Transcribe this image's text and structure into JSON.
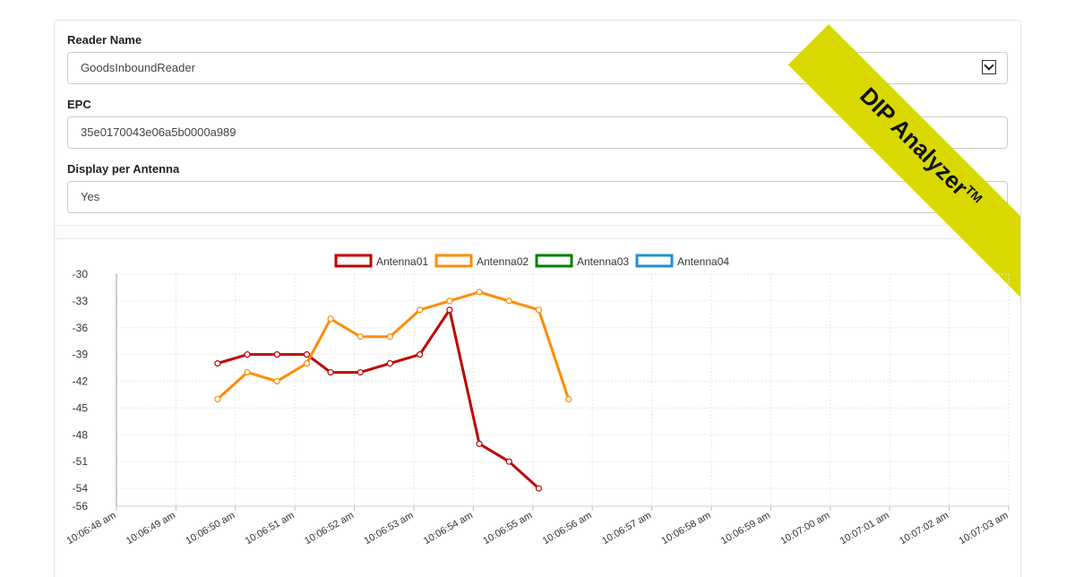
{
  "form": {
    "reader_name_label": "Reader Name",
    "reader_name_value": "GoodsInboundReader",
    "epc_label": "EPC",
    "epc_value": "35e0170043e06a5b0000a989",
    "display_label": "Display per Antenna",
    "display_value": "Yes"
  },
  "ribbon": {
    "text": "DIP Analyzer",
    "tm": "TM",
    "color": "#d9d900"
  },
  "chart_data": {
    "type": "line",
    "x": [
      "10:06:48 am",
      "10:06:49 am",
      "10:06:50 am",
      "10:06:51 am",
      "10:06:52 am",
      "10:06:53 am",
      "10:06:54 am",
      "10:06:55 am",
      "10:06:56 am",
      "10:06:57 am",
      "10:06:58 am",
      "10:06:59 am",
      "10:07:00 am",
      "10:07:01 am",
      "10:07:02 am",
      "10:07:03 am"
    ],
    "ylim": [
      -56,
      -30
    ],
    "yticks": [
      -30,
      -33,
      -36,
      -39,
      -42,
      -45,
      -48,
      -51,
      -54,
      -56
    ],
    "legend_position": "top-center",
    "grid": true,
    "series": [
      {
        "name": "Antenna01",
        "color": "#c00000",
        "points": [
          [
            "10:06:49.7",
            -40
          ],
          [
            "10:06:50.2",
            -39
          ],
          [
            "10:06:50.7",
            -39
          ],
          [
            "10:06:51.2",
            -39
          ],
          [
            "10:06:51.6",
            -41
          ],
          [
            "10:06:52.1",
            -41
          ],
          [
            "10:06:52.6",
            -40
          ],
          [
            "10:06:53.1",
            -39
          ],
          [
            "10:06:53.6",
            -34
          ],
          [
            "10:06:54.1",
            -49
          ],
          [
            "10:06:54.6",
            -51
          ],
          [
            "10:06:55.1",
            -54
          ]
        ]
      },
      {
        "name": "Antenna02",
        "color": "#ff8c00",
        "points": [
          [
            "10:06:49.7",
            -44
          ],
          [
            "10:06:50.2",
            -41
          ],
          [
            "10:06:50.7",
            -42
          ],
          [
            "10:06:51.2",
            -40
          ],
          [
            "10:06:51.6",
            -35
          ],
          [
            "10:06:52.1",
            -37
          ],
          [
            "10:06:52.6",
            -37
          ],
          [
            "10:06:53.1",
            -34
          ],
          [
            "10:06:53.6",
            -33
          ],
          [
            "10:06:54.1",
            -32
          ],
          [
            "10:06:54.6",
            -33
          ],
          [
            "10:06:55.1",
            -34
          ],
          [
            "10:06:55.6",
            -44
          ]
        ]
      },
      {
        "name": "Antenna03",
        "color": "#008000",
        "points": []
      },
      {
        "name": "Antenna04",
        "color": "#1e90d0",
        "points": []
      }
    ]
  }
}
